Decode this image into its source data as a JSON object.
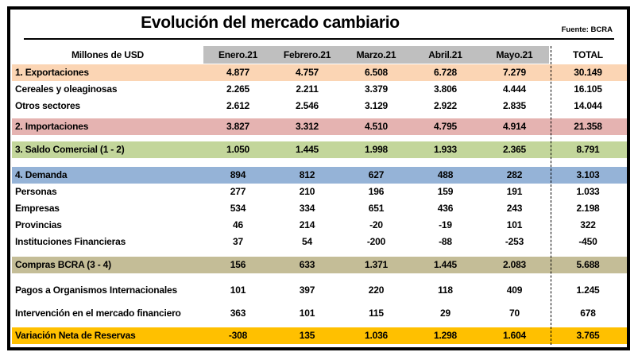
{
  "chart_data": {
    "type": "table",
    "title": "Evolución del mercado cambiario",
    "source": "Fuente: BCRA",
    "unit_label": "Millones de USD",
    "columns": [
      "Enero.21",
      "Febrero.21",
      "Marzo.21",
      "Abril.21",
      "Mayo.21"
    ],
    "total_label": "TOTAL",
    "rows": [
      {
        "label": "1. Exportaciones",
        "values": [
          "4.877",
          "4.757",
          "6.508",
          "6.728",
          "7.279"
        ],
        "total": "30.149",
        "band": "exports",
        "gap": 1
      },
      {
        "label": "Cereales y oleaginosas",
        "values": [
          "2.265",
          "2.211",
          "3.379",
          "3.806",
          "4.444"
        ],
        "total": "16.105",
        "band": null,
        "gap": 0
      },
      {
        "label": "Otros sectores",
        "values": [
          "2.612",
          "2.546",
          "3.129",
          "2.922",
          "2.835"
        ],
        "total": "14.044",
        "band": null,
        "gap": 0
      },
      {
        "label": "2. Importaciones",
        "values": [
          "3.827",
          "3.312",
          "4.510",
          "4.795",
          "4.914"
        ],
        "total": "21.358",
        "band": "imports",
        "gap": 5
      },
      {
        "label": "3. Saldo Comercial (1 - 2)",
        "values": [
          "1.050",
          "1.445",
          "1.998",
          "1.933",
          "2.365"
        ],
        "total": "8.791",
        "band": "balance",
        "gap": 8
      },
      {
        "label": "4. Demanda",
        "values": [
          "894",
          "812",
          "627",
          "488",
          "282"
        ],
        "total": "3.103",
        "band": "demand",
        "gap": 11
      },
      {
        "label": "Personas",
        "values": [
          "277",
          "210",
          "196",
          "159",
          "191"
        ],
        "total": "1.033",
        "band": null,
        "gap": 0
      },
      {
        "label": "Empresas",
        "values": [
          "534",
          "334",
          "651",
          "436",
          "243"
        ],
        "total": "2.198",
        "band": null,
        "gap": 0
      },
      {
        "label": "Provincias",
        "values": [
          "46",
          "214",
          "-20",
          "-19",
          "101"
        ],
        "total": "322",
        "band": null,
        "gap": 0
      },
      {
        "label": "Instituciones Financieras",
        "values": [
          "37",
          "54",
          "-200",
          "-88",
          "-253"
        ],
        "total": "-450",
        "band": null,
        "gap": 0
      },
      {
        "label": "Compras BCRA (3 - 4)",
        "values": [
          "156",
          "633",
          "1.371",
          "1.445",
          "2.083"
        ],
        "total": "5.688",
        "band": "bcra",
        "gap": 8
      },
      {
        "label": "Pagos a Organismos Internacionales",
        "values": [
          "101",
          "397",
          "220",
          "118",
          "409"
        ],
        "total": "1.245",
        "band": null,
        "gap": 11
      },
      {
        "label": "Intervención en el mercado financiero",
        "values": [
          "363",
          "101",
          "115",
          "29",
          "70"
        ],
        "total": "678",
        "band": null,
        "gap": 8
      },
      {
        "label": "Variación Neta de Reservas",
        "values": [
          "-308",
          "135",
          "1.036",
          "1.298",
          "1.604"
        ],
        "total": "3.765",
        "band": "reserves",
        "gap": 7
      }
    ]
  },
  "colors": {
    "header_bg": "#BFBFBF",
    "exports": "#FBD5B4",
    "imports": "#E5B3B1",
    "balance": "#C3D69B",
    "demand": "#95B3D7",
    "bcra": "#C4BD97",
    "reserves": "#FFC000",
    "border": "#000000"
  }
}
